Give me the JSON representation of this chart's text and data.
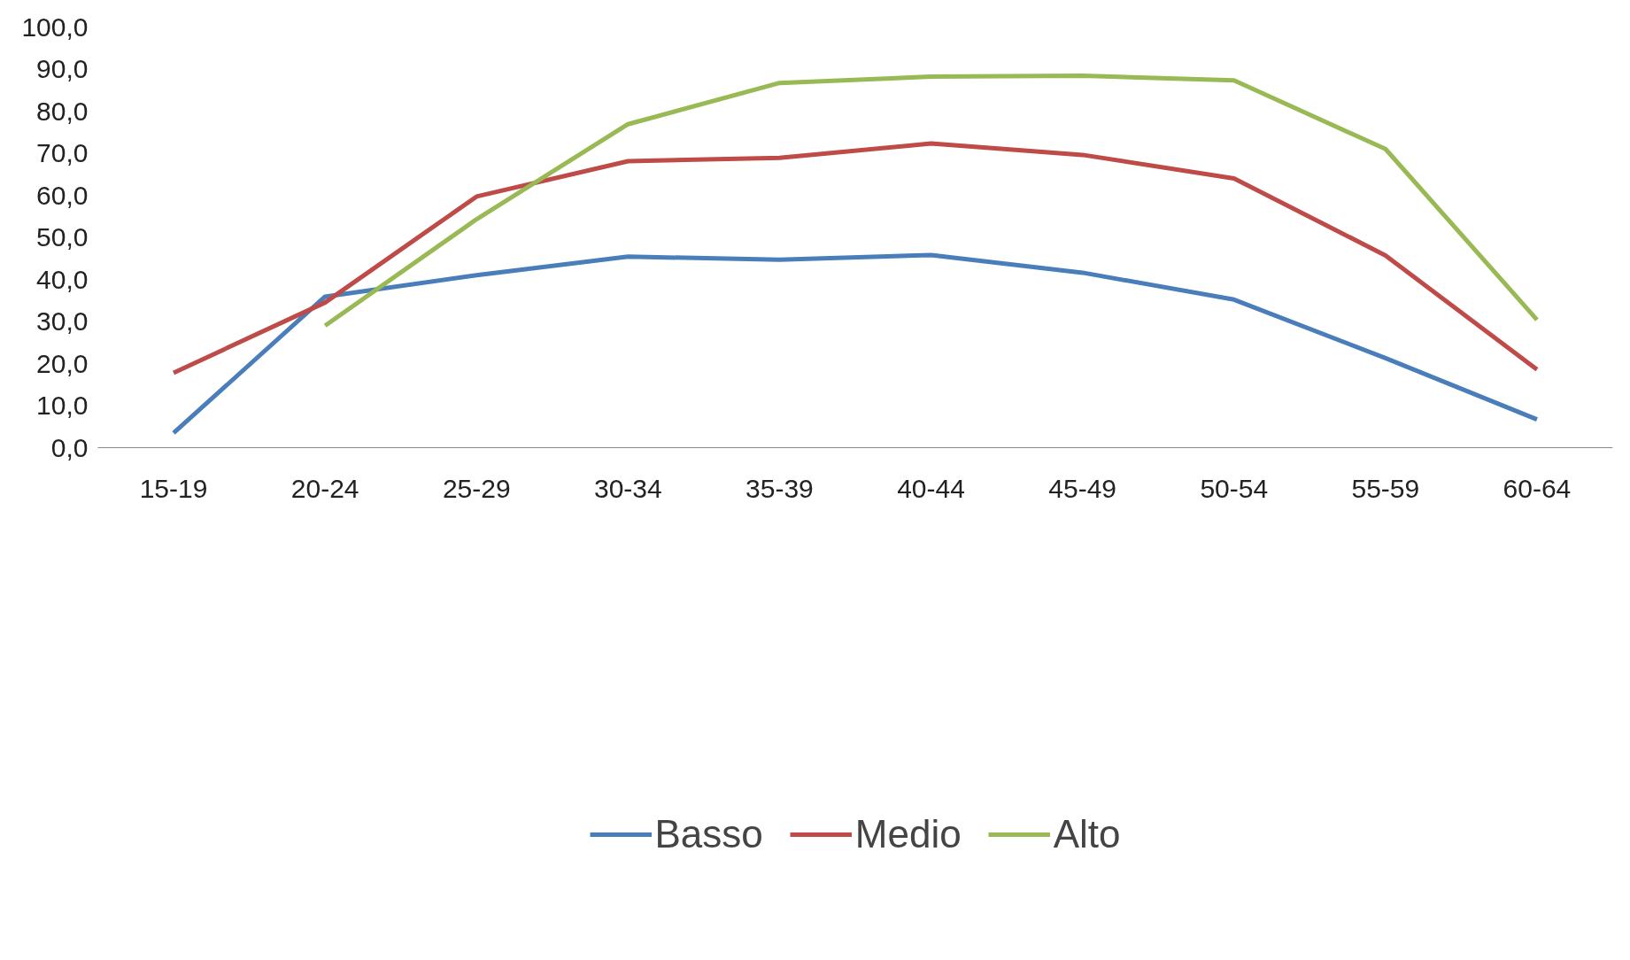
{
  "chart_data": {
    "type": "line",
    "categories": [
      "15-19",
      "20-24",
      "25-29",
      "30-34",
      "35-39",
      "40-44",
      "45-49",
      "50-54",
      "55-59",
      "60-64"
    ],
    "series": [
      {
        "name": "Basso",
        "color": "#4a7ebb",
        "values": [
          3.5,
          35.9,
          41.0,
          45.4,
          44.7,
          45.8,
          41.6,
          35.2,
          21.3,
          6.7
        ]
      },
      {
        "name": "Medio",
        "color": "#be4b48",
        "values": [
          17.8,
          34.5,
          59.7,
          68.1,
          68.9,
          72.3,
          69.6,
          64.0,
          45.7,
          18.6
        ]
      },
      {
        "name": "Alto",
        "color": "#98b954",
        "values": [
          null,
          29.0,
          54.3,
          76.9,
          86.7,
          88.2,
          88.4,
          87.3,
          71.0,
          30.4
        ]
      }
    ],
    "ylim": [
      0,
      100
    ],
    "yticks": [
      {
        "value": 0,
        "label": "0,0"
      },
      {
        "value": 10,
        "label": "10,0"
      },
      {
        "value": 20,
        "label": "20,0"
      },
      {
        "value": 30,
        "label": "30,0"
      },
      {
        "value": 40,
        "label": "40,0"
      },
      {
        "value": 50,
        "label": "50,0"
      },
      {
        "value": 60,
        "label": "60,0"
      },
      {
        "value": 70,
        "label": "70,0"
      },
      {
        "value": 80,
        "label": "80,0"
      },
      {
        "value": 90,
        "label": "90,0"
      },
      {
        "value": 100,
        "label": "100,0"
      }
    ],
    "grid": false,
    "legend": "bottom",
    "marker": "none",
    "line_style": "solid"
  }
}
